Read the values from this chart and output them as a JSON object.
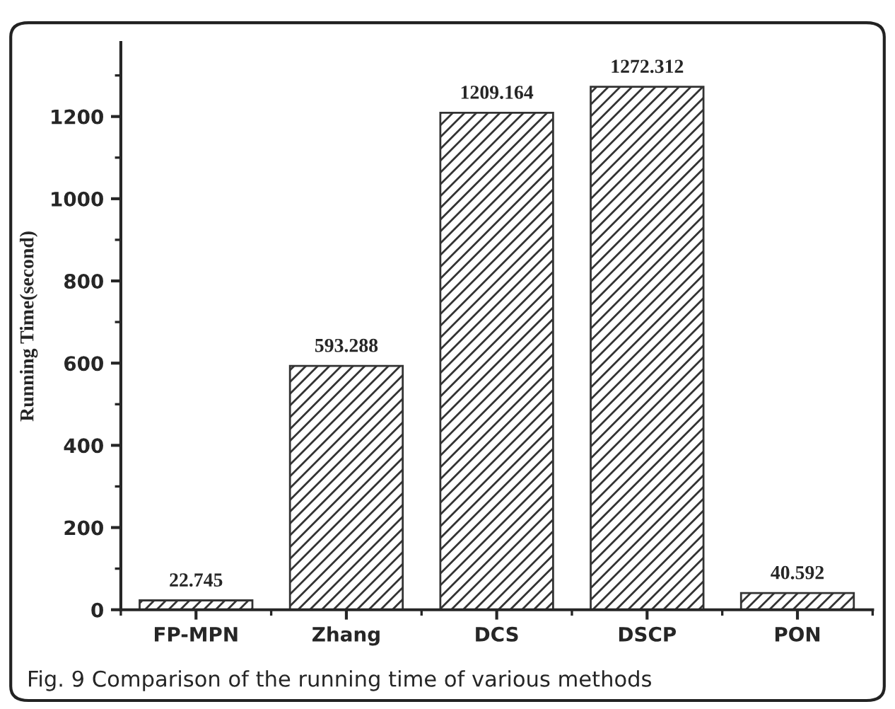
{
  "chart_data": {
    "type": "bar",
    "ylabel": "Running Time(second)",
    "categories": [
      "FP-MPN",
      "Zhang",
      "DCS",
      "DSCP",
      "PON"
    ],
    "values": [
      22.745,
      593.288,
      1209.164,
      1272.312,
      40.592
    ],
    "value_labels": [
      "22.745",
      "593.288",
      "1209.164",
      "1272.312",
      "40.592"
    ],
    "color": "#333333",
    "ylim": [
      0,
      1380
    ],
    "yticks": [
      0,
      200,
      400,
      600,
      800,
      1000,
      1200
    ],
    "grid": false,
    "legend": false,
    "annotations": [
      "Fig. 9 Comparison of the running time of various methods"
    ]
  }
}
